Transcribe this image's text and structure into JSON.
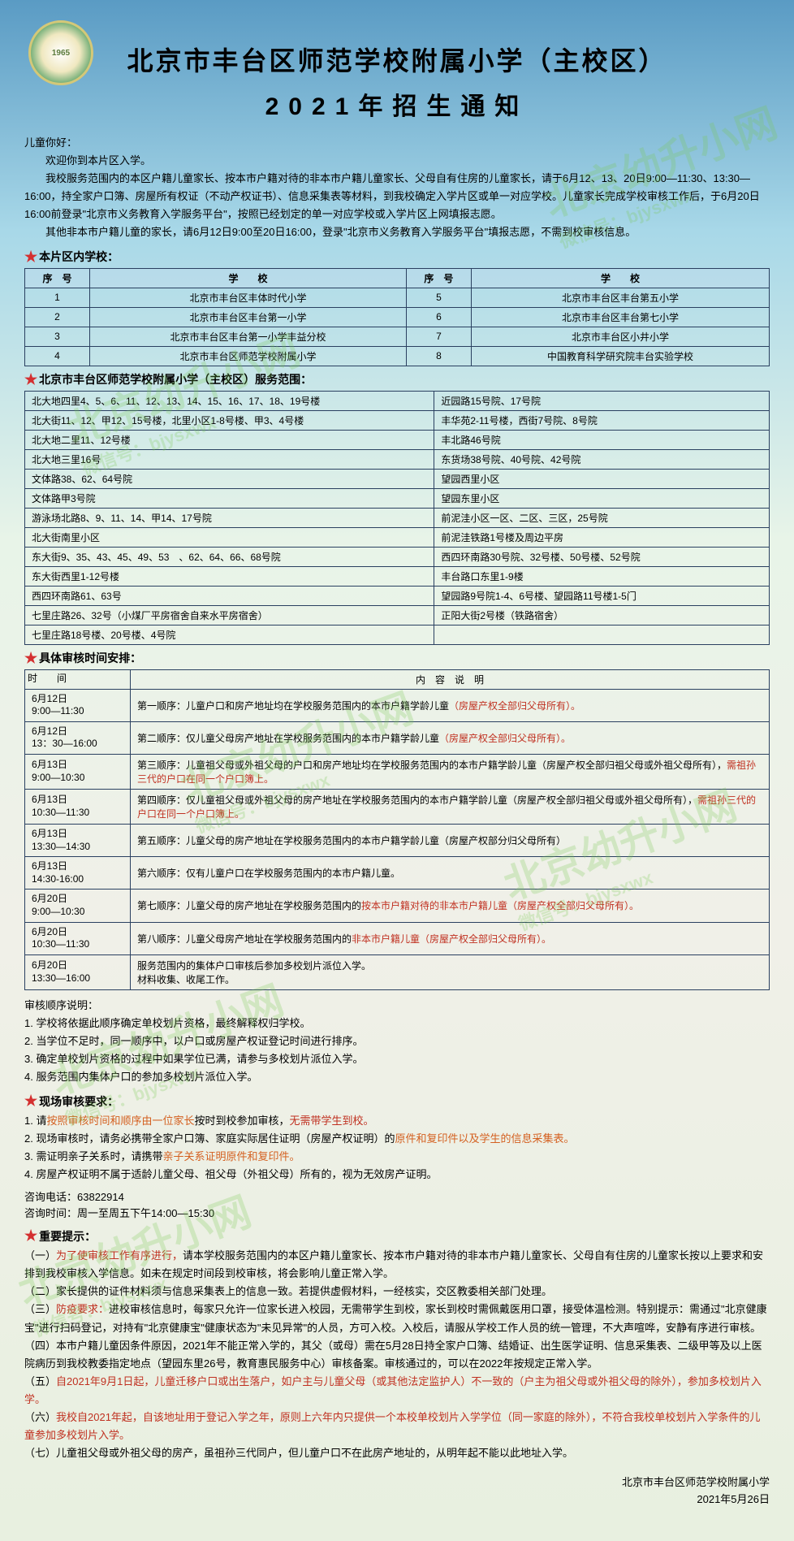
{
  "header": {
    "logo_year": "1965",
    "title": "北京市丰台区师范学校附属小学（主校区）",
    "subtitle": "2021年招生通知"
  },
  "intro": {
    "greeting": "儿童你好：",
    "p1": "欢迎你到本片区入学。",
    "p2": "我校服务范围内的本区户籍儿童家长、按本市户籍对待的非本市户籍儿童家长、父母自有住房的儿童家长，请于6月12、13、20日9:00—11:30、13:30—16:00，持全家户口簿、房屋所有权证（不动产权证书）、信息采集表等材料，到我校确定入学片区或单一对应学校。儿童家长完成学校审核工作后，于6月20日16:00前登录\"北京市义务教育入学服务平台\"，按照已经划定的单一对应学校或入学片区上网填报志愿。",
    "p3": "其他非本市户籍儿童的家长，请6月12日9:00至20日16:00，登录\"北京市义务教育入学服务平台\"填报志愿，不需到校审核信息。"
  },
  "sections": {
    "schools_head": "本片区内学校：",
    "range_head": "北京市丰台区师范学校附属小学（主校区）服务范围：",
    "schedule_head": "具体审核时间安排：",
    "onsite_head": "现场审核要求：",
    "tips_head": "重要提示："
  },
  "schools": {
    "cols": [
      "序　号",
      "学　　校",
      "序　号",
      "学　　校"
    ],
    "rows": [
      [
        "1",
        "北京市丰台区丰体时代小学",
        "5",
        "北京市丰台区丰台第五小学"
      ],
      [
        "2",
        "北京市丰台区丰台第一小学",
        "6",
        "北京市丰台区丰台第七小学"
      ],
      [
        "3",
        "北京市丰台区丰台第一小学丰益分校",
        "7",
        "北京市丰台区小井小学"
      ],
      [
        "4",
        "北京市丰台区师范学校附属小学",
        "8",
        "中国教育科学研究院丰台实验学校"
      ]
    ]
  },
  "range_rows": [
    [
      "北大地四里4、5、6、11、12、13、14、15、16、17、18、19号楼",
      "近园路15号院、17号院"
    ],
    [
      "北大街11、12、甲12、15号楼，北里小区1-8号楼、甲3、4号楼",
      "丰华苑2-11号楼，西街7号院、8号院"
    ],
    [
      "北大地二里11、12号楼",
      "丰北路46号院"
    ],
    [
      "北大地三里16号",
      "东货场38号院、40号院、42号院"
    ],
    [
      "文体路38、62、64号院",
      "望园西里小区"
    ],
    [
      "文体路甲3号院",
      "望园东里小区"
    ],
    [
      "游泳场北路8、9、11、14、甲14、17号院",
      "前泥洼小区一区、二区、三区，25号院"
    ],
    [
      "北大街南里小区",
      "前泥洼铁路1号楼及周边平房"
    ],
    [
      "东大街9、35、43、45、49、53　、62、64、66、68号院",
      "西四环南路30号院、32号楼、50号楼、52号院"
    ],
    [
      "东大街西里1-12号楼",
      "丰台路口东里1-9楼"
    ],
    [
      "西四环南路61、63号",
      "望园路9号院1-4、6号楼、望园路11号楼1-5门"
    ],
    [
      "七里庄路26、32号（小煤厂平房宿舍自来水平房宿舍）",
      "正阳大街2号楼（铁路宿舍）"
    ],
    [
      "七里庄路18号楼、20号楼、4号院",
      ""
    ]
  ],
  "schedule": {
    "head": [
      "时　　间",
      "内　容　说　明"
    ],
    "rows": [
      {
        "time": "6月12日\n9:00—11:30",
        "text": "第一顺序：儿童户口和房产地址均在学校服务范围内的本市户籍学龄儿童",
        "red": "（房屋产权全部归父母所有）。"
      },
      {
        "time": "6月12日\n13：30—16:00",
        "text": "第二顺序：仅儿童父母房产地址在学校服务范围内的本市户籍学龄儿童",
        "red": "（房屋产权全部归父母所有）。"
      },
      {
        "time": "6月13日\n9:00—10:30",
        "text": "第三顺序：儿童祖父母或外祖父母的户口和房产地址均在学校服务范围内的本市户籍学龄儿童（房屋产权全部归祖父母或外祖父母所有），",
        "red": "需祖孙三代的户口在同一个户口簿上。"
      },
      {
        "time": "6月13日\n10:30—11:30",
        "text": "第四顺序：仅儿童祖父母或外祖父母的房产地址在学校服务范围内的本市户籍学龄儿童（房屋产权全部归祖父母或外祖父母所有），",
        "red": "需祖孙三代的户口在同一个户口簿上。"
      },
      {
        "time": "6月13日\n13:30—14:30",
        "text": "第五顺序：儿童父母的房产地址在学校服务范围内的本市户籍学龄儿童（房屋产权部分归父母所有）",
        "red": ""
      },
      {
        "time": "6月13日\n14:30-16:00",
        "text": "第六顺序：仅有儿童户口在学校服务范围内的本市户籍儿童。",
        "red": ""
      },
      {
        "time": "6月20日\n9:00—10:30",
        "text": "第七顺序：儿童父母的房产地址在学校服务范围内的",
        "red": "按本市户籍对待的非本市户籍儿童（房屋产权全部归父母所有）。"
      },
      {
        "time": "6月20日\n10:30—11:30",
        "text": "第八顺序：儿童父母房产地址在学校服务范围内的",
        "red": "非本市户籍儿童（房屋产权全部归父母所有）。"
      },
      {
        "time": "6月20日\n13:30—16:00",
        "text": "服务范围内的集体户口审核后参加多校划片派位入学。\n材料收集、收尾工作。",
        "red": ""
      }
    ]
  },
  "notes": {
    "title": "审核顺序说明：",
    "items": [
      "1. 学校将依据此顺序确定单校划片资格，最终解释权归学校。",
      "2. 当学位不足时，同一顺序中，以户口或房屋产权证登记时间进行排序。",
      "3. 确定单校划片资格的过程中如果学位已满，请参与多校划片派位入学。",
      "4. 服务范围内集体户口的参加多校划片派位入学。"
    ]
  },
  "onsite": {
    "items": [
      {
        "pre": "1. 请",
        "orange": "按照审核时间和顺序由一位家长",
        "mid": "按时到校参加审核，",
        "red": "无需带学生到校。"
      },
      {
        "pre": "2. 现场审核时，请务必携带全家户口簿、家庭实际居住证明（房屋产权证明）的",
        "orange": "原件和复印件以及学生的信息采集表。",
        "mid": "",
        "red": ""
      },
      {
        "pre": "3. 需证明亲子关系时，请携带",
        "orange": "亲子关系证明原件和复印件。",
        "mid": "",
        "red": ""
      },
      {
        "pre": "4. 房屋产权证明不属于适龄儿童父母、祖父母（外祖父母）所有的，视为无效房产证明。",
        "orange": "",
        "mid": "",
        "red": ""
      }
    ]
  },
  "contact": {
    "phone": "咨询电话：63822914",
    "hours": "咨询时间：周一至周五下午14:00—15:30"
  },
  "tips": {
    "items": [
      {
        "label": "（一）",
        "red": "为了使审核工作有序进行，",
        "text": "请本学校服务范围内的本区户籍儿童家长、按本市户籍对待的非本市户籍儿童家长、父母自有住房的儿童家长按以上要求和安排到我校审核入学信息。如未在规定时间段到校审核，将会影响儿童正常入学。"
      },
      {
        "label": "（二）",
        "red": "",
        "text": "家长提供的证件材料须与信息采集表上的信息一致。若提供虚假材料，一经核实，交区教委相关部门处理。"
      },
      {
        "label": "（三）",
        "red": "防疫要求：",
        "text": "进校审核信息时，每家只允许一位家长进入校园，无需带学生到校，家长到校时需佩戴医用口罩，接受体温检测。特别提示：需通过\"北京健康宝\"进行扫码登记，对持有\"北京健康宝\"健康状态为\"未见异常\"的人员，方可入校。入校后，请服从学校工作人员的统一管理，不大声喧哗，安静有序进行审核。"
      },
      {
        "label": "（四）",
        "red": "",
        "text": "本市户籍儿童因条件原因，2021年不能正常入学的，其父（或母）需在5月28日持全家户口簿、结婚证、出生医学证明、信息采集表、二级甲等及以上医院病历到我校教委指定地点（望园东里26号，教育惠民服务中心）审核备案。审核通过的，可以在2022年按规定正常入学。"
      },
      {
        "label": "（五）",
        "red": "自2021年9月1日起，儿童迁移户口或出生落户，如户主与儿童父母（或其他法定监护人）不一致的（户主为祖父母或外祖父母的除外），参加多校划片入学。",
        "text": ""
      },
      {
        "label": "（六）",
        "red": "我校自2021年起，自该地址用于登记入学之年，原则上六年内只提供一个本校单校划片入学学位（同一家庭的除外），不符合我校单校划片入学条件的儿童参加多校划片入学。",
        "text": ""
      },
      {
        "label": "（七）",
        "red": "",
        "text": "儿童祖父母或外祖父母的房产，虽祖孙三代同户，但儿童户口不在此房产地址的，从明年起不能以此地址入学。"
      }
    ]
  },
  "sign": {
    "org": "北京市丰台区师范学校附属小学",
    "date": "2021年5月26日"
  },
  "watermark": {
    "main": "北京幼升小网",
    "sub": "微信号：bjysxwx"
  }
}
